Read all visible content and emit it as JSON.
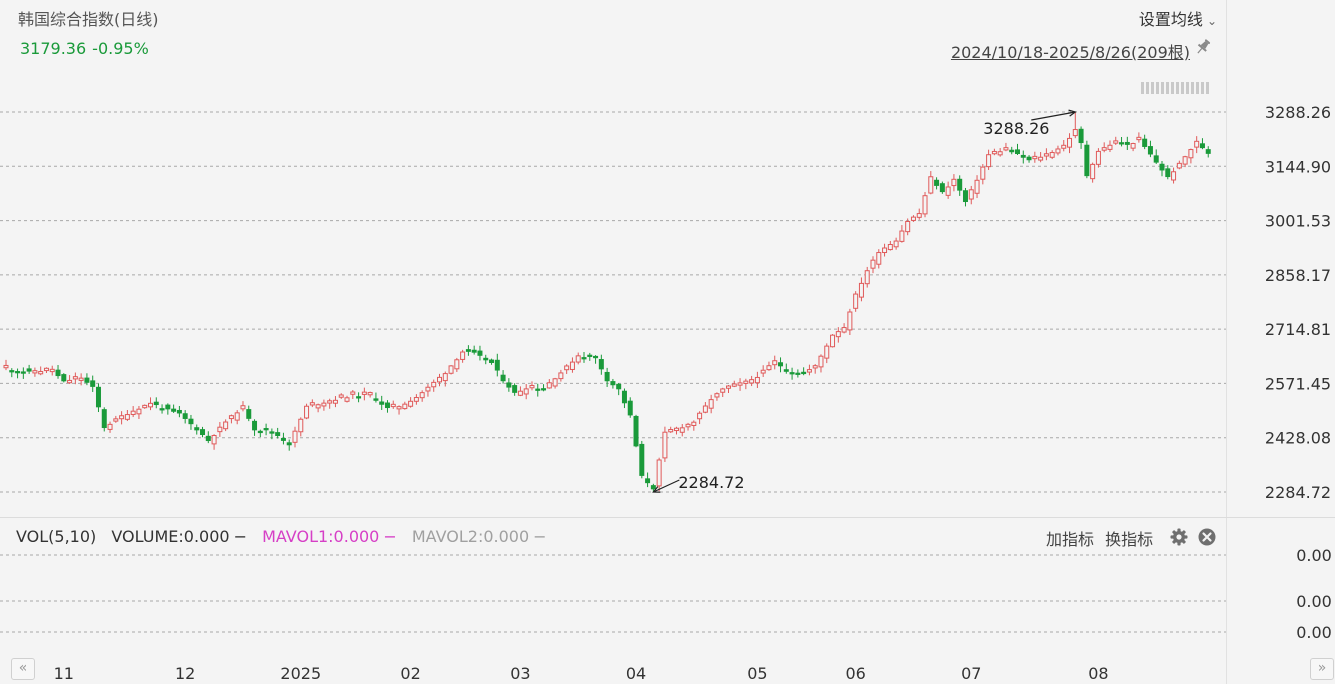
{
  "header": {
    "title": "韩国综合指数(日线)",
    "last_price": "3179.36",
    "change_pct": "-0.95%",
    "settings_label": "设置均线",
    "range_label": "2024/10/18-2025/8/26(209根)"
  },
  "colors": {
    "up": "#e05a5a",
    "down": "#1a9a3a",
    "grid": "#a8a8a8",
    "magenta": "#d63fc6",
    "gray": "#a0a0a0"
  },
  "icons": {
    "pin": "pin-icon",
    "settings_chevron": "chevron-down-icon",
    "gear": "gear-icon",
    "close": "close-icon",
    "scroll_left": "double-chevron-left-icon",
    "scroll_right": "double-chevron-right-icon"
  },
  "volume_panel": {
    "label": "VOL(5,10)",
    "volume": "VOLUME:0.000",
    "mavol1": "MAVOL1:0.000",
    "mavol2": "MAVOL2:0.000",
    "dash": "−",
    "add_indicator": "加指标",
    "switch_indicator": "换指标",
    "y_ticks": [
      "0.00",
      "0.00",
      "0.00"
    ]
  },
  "navigation": {
    "left": "«",
    "right": "»"
  },
  "chart_data": {
    "type": "candlestick",
    "y_ticks": [
      "3288.26",
      "3144.90",
      "3001.53",
      "2858.17",
      "2714.81",
      "2571.45",
      "2428.08",
      "2284.72"
    ],
    "ylim": [
      2284.72,
      3288.26
    ],
    "x_ticks": [
      {
        "label": "11",
        "index": 10
      },
      {
        "label": "12",
        "index": 31
      },
      {
        "label": "2025",
        "index": 51
      },
      {
        "label": "02",
        "index": 70
      },
      {
        "label": "03",
        "index": 89
      },
      {
        "label": "04",
        "index": 109
      },
      {
        "label": "05",
        "index": 130
      },
      {
        "label": "06",
        "index": 147
      },
      {
        "label": "07",
        "index": 167
      },
      {
        "label": "08",
        "index": 189
      }
    ],
    "annotations": [
      {
        "label": "3288.26",
        "index": 185,
        "value": 3288.26,
        "type": "high"
      },
      {
        "label": "2284.72",
        "index": 112,
        "value": 2284.72,
        "type": "low"
      }
    ],
    "close_path": [
      [
        0,
        2612
      ],
      [
        4,
        2600
      ],
      [
        8,
        2605
      ],
      [
        10,
        2575
      ],
      [
        13,
        2585
      ],
      [
        15,
        2560
      ],
      [
        17,
        2455
      ],
      [
        20,
        2485
      ],
      [
        25,
        2520
      ],
      [
        28,
        2500
      ],
      [
        30,
        2490
      ],
      [
        33,
        2450
      ],
      [
        35,
        2420
      ],
      [
        38,
        2470
      ],
      [
        41,
        2510
      ],
      [
        43,
        2450
      ],
      [
        46,
        2445
      ],
      [
        49,
        2410
      ],
      [
        52,
        2510
      ],
      [
        56,
        2525
      ],
      [
        60,
        2540
      ],
      [
        63,
        2540
      ],
      [
        66,
        2505
      ],
      [
        68,
        2510
      ],
      [
        71,
        2535
      ],
      [
        73,
        2560
      ],
      [
        76,
        2600
      ],
      [
        79,
        2655
      ],
      [
        81,
        2650
      ],
      [
        84,
        2625
      ],
      [
        86,
        2580
      ],
      [
        88,
        2545
      ],
      [
        90,
        2560
      ],
      [
        93,
        2560
      ],
      [
        96,
        2600
      ],
      [
        99,
        2645
      ],
      [
        102,
        2640
      ],
      [
        104,
        2580
      ],
      [
        106,
        2555
      ],
      [
        108,
        2485
      ],
      [
        110,
        2325
      ],
      [
        112,
        2294
      ],
      [
        114,
        2440
      ],
      [
        116,
        2450
      ],
      [
        119,
        2470
      ],
      [
        122,
        2530
      ],
      [
        124,
        2555
      ],
      [
        127,
        2565
      ],
      [
        130,
        2590
      ],
      [
        133,
        2630
      ],
      [
        135,
        2605
      ],
      [
        138,
        2600
      ],
      [
        140,
        2615
      ],
      [
        143,
        2700
      ],
      [
        145,
        2720
      ],
      [
        147,
        2805
      ],
      [
        149,
        2870
      ],
      [
        151,
        2920
      ],
      [
        154,
        2950
      ],
      [
        156,
        3000
      ],
      [
        158,
        3020
      ],
      [
        160,
        3115
      ],
      [
        162,
        3075
      ],
      [
        164,
        3110
      ],
      [
        166,
        3050
      ],
      [
        168,
        3110
      ],
      [
        170,
        3175
      ],
      [
        173,
        3190
      ],
      [
        175,
        3175
      ],
      [
        177,
        3160
      ],
      [
        180,
        3175
      ],
      [
        183,
        3200
      ],
      [
        185,
        3240
      ],
      [
        186,
        3205
      ],
      [
        187,
        3120
      ],
      [
        189,
        3185
      ],
      [
        192,
        3210
      ],
      [
        194,
        3200
      ],
      [
        196,
        3215
      ],
      [
        197,
        3195
      ],
      [
        199,
        3155
      ],
      [
        201,
        3115
      ],
      [
        203,
        3150
      ],
      [
        205,
        3190
      ],
      [
        206,
        3209
      ],
      [
        208,
        3179
      ]
    ]
  }
}
